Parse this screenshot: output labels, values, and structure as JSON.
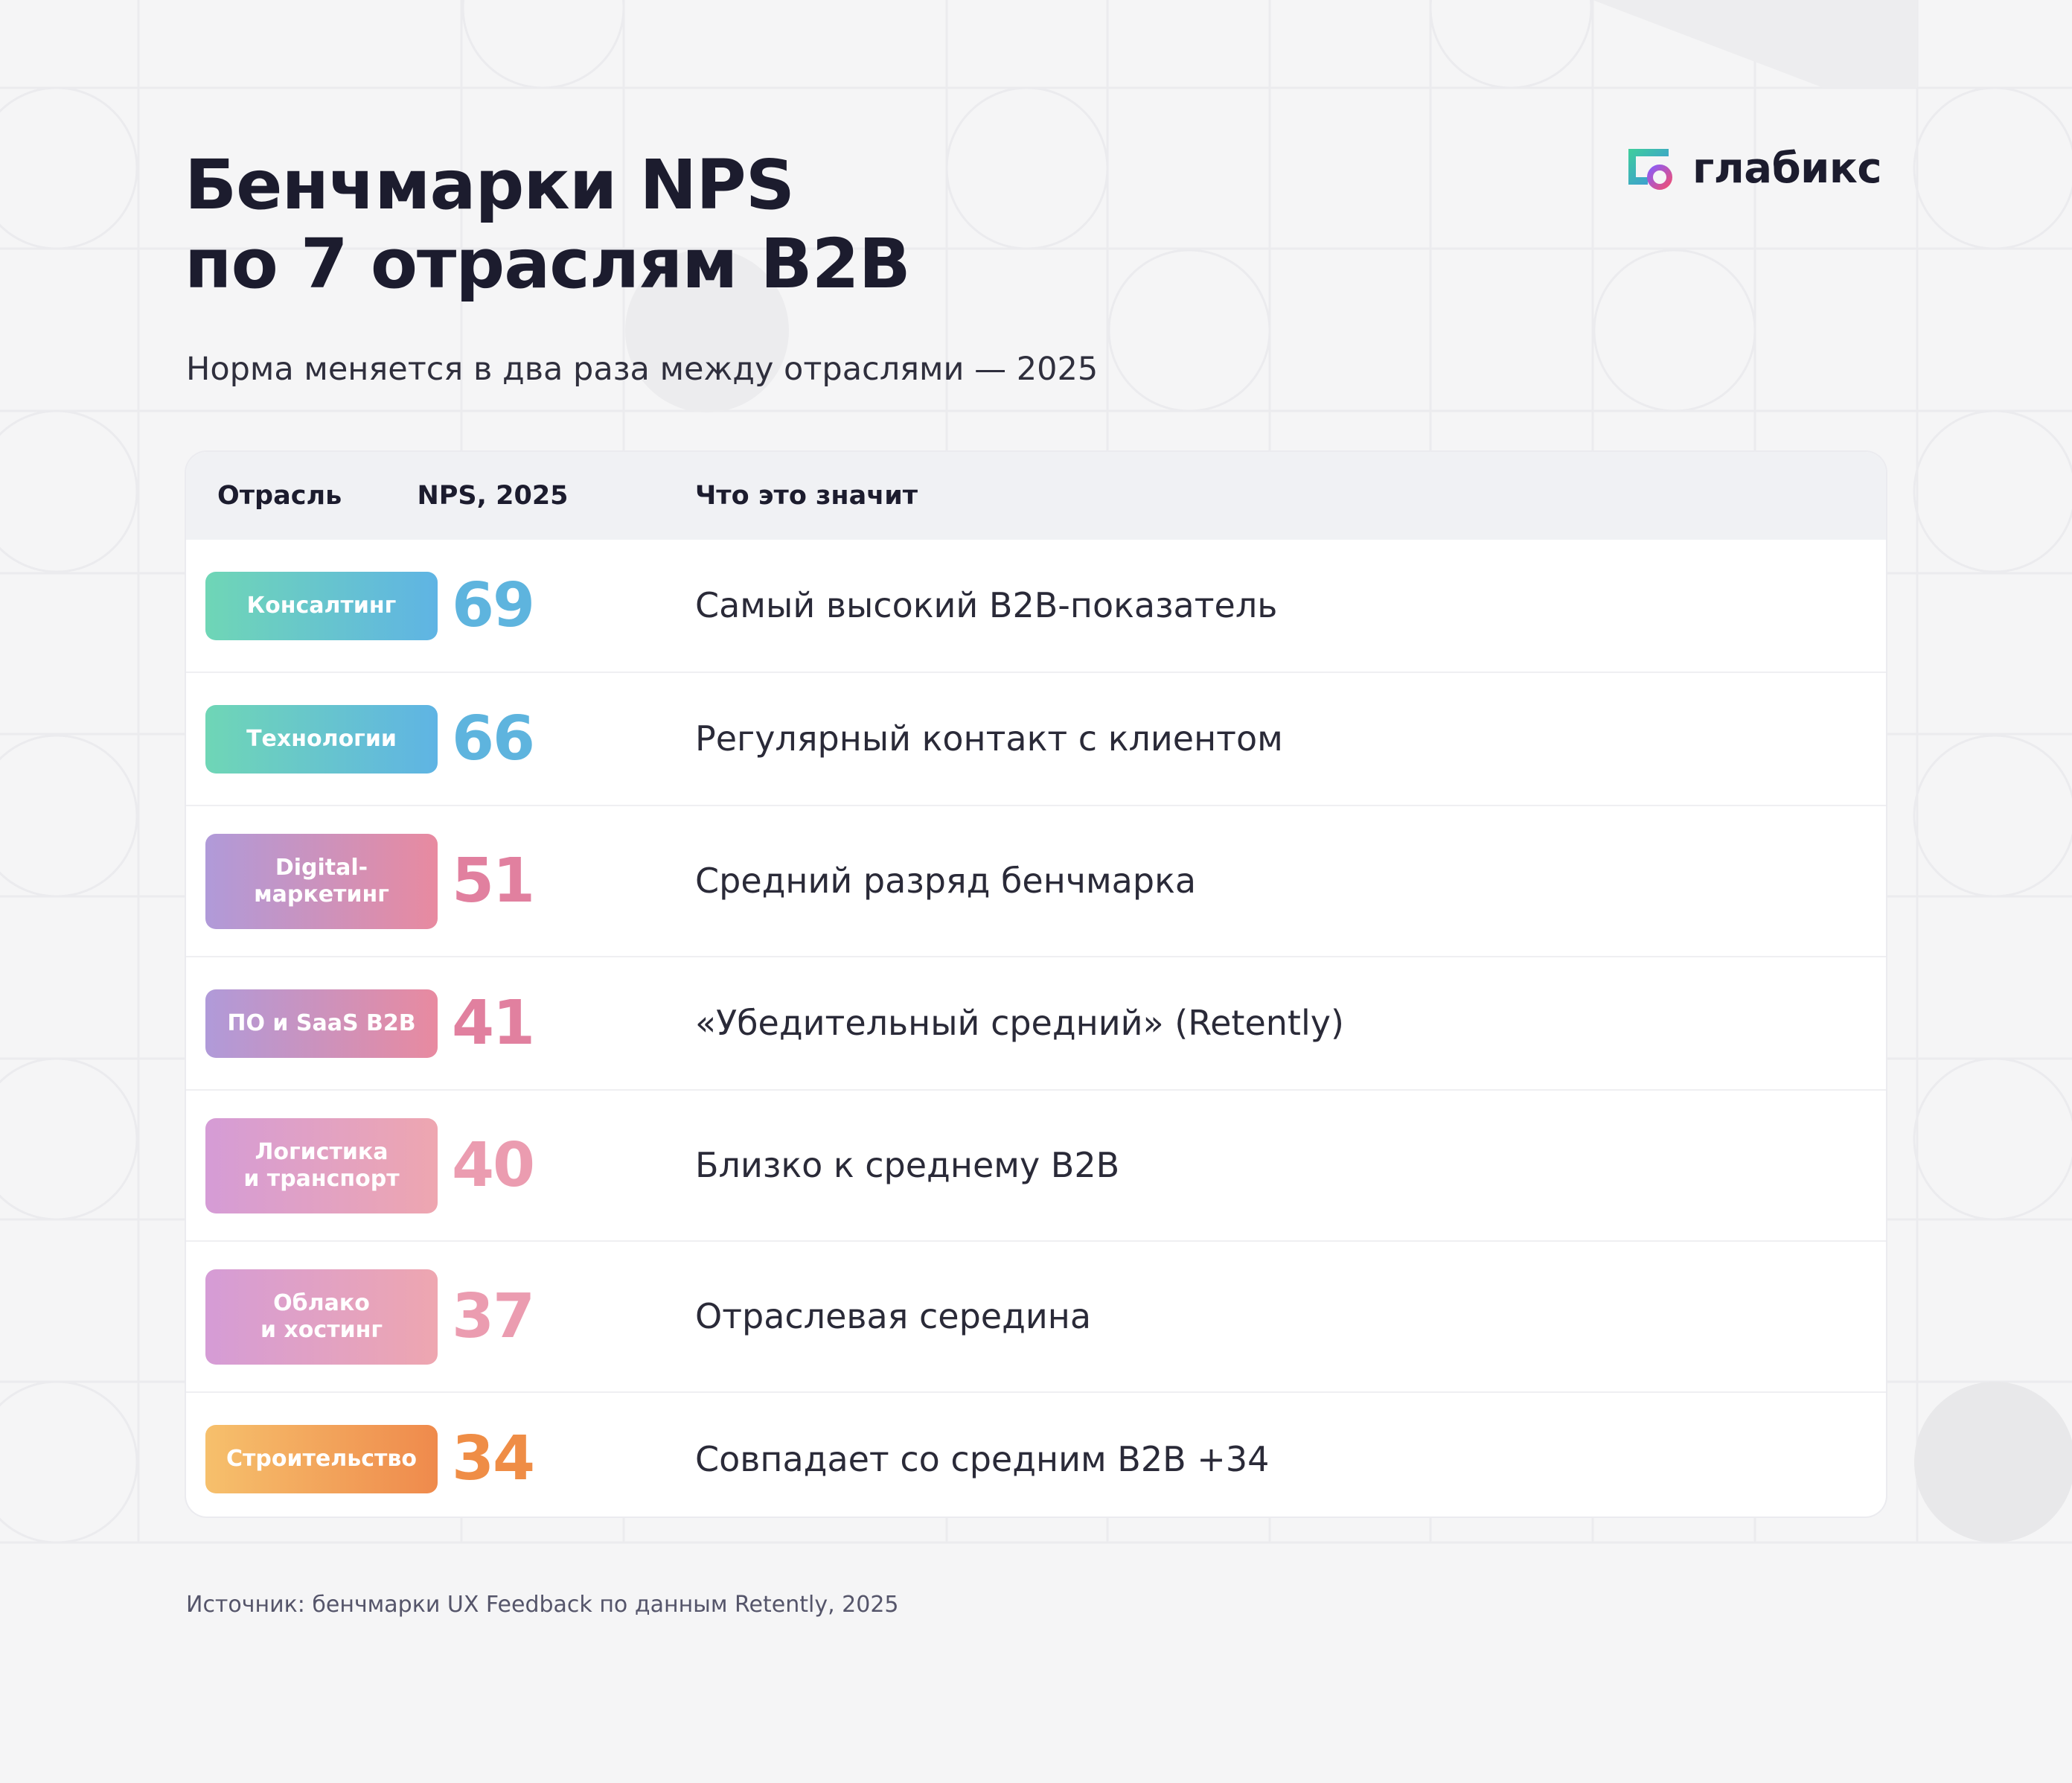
{
  "header": {
    "title_line1": "Бенчмарки NPS",
    "title_line2": "по 7 отраслям B2B",
    "subtitle": "Норма меняется в два раза между отраслями — 2025"
  },
  "logo": {
    "text": "глабикс",
    "icon": "glabix-logo-icon"
  },
  "table": {
    "headers": {
      "industry": "Отрасль",
      "nps": "NPS, 2025",
      "meaning": "Что это значит"
    },
    "rows": [
      {
        "industry": "Консалтинг",
        "nps": "69",
        "meaning": "Самый высокий B2B-показатель",
        "gradient": [
          "#6fd6b6",
          "#5fb4e4"
        ],
        "nps_color": "#5eb4de"
      },
      {
        "industry": "Технологии",
        "nps": "66",
        "meaning": "Регулярный контакт с клиентом",
        "gradient": [
          "#6fd6b6",
          "#5fb4e4"
        ],
        "nps_color": "#5eb4de"
      },
      {
        "industry": "Digital-\nмаркетинг",
        "nps": "51",
        "meaning": "Средний разряд бенчмарка",
        "gradient": [
          "#b09ad9",
          "#e88aa0"
        ],
        "nps_color": "#e1809f"
      },
      {
        "industry": "ПО и SaaS B2B",
        "nps": "41",
        "meaning": "«Убедительный средний» (Retently)",
        "gradient": [
          "#b09ad9",
          "#e88aa0"
        ],
        "nps_color": "#e1809f"
      },
      {
        "industry": "Логистика\nи транспорт",
        "nps": "40",
        "meaning": "Близко к среднему B2B",
        "gradient": [
          "#d59cd6",
          "#eea6b0"
        ],
        "nps_color": "#eb9cb0"
      },
      {
        "industry": "Облако\nи хостинг",
        "nps": "37",
        "meaning": "Отраслевая середина",
        "gradient": [
          "#d59cd6",
          "#eea6b0"
        ],
        "nps_color": "#eb9cb0"
      },
      {
        "industry": "Строительство",
        "nps": "34",
        "meaning": "Совпадает со средним B2B +34",
        "gradient": [
          "#f6c06c",
          "#ef8a4c"
        ],
        "nps_color": "#ef8d46"
      }
    ]
  },
  "footer": {
    "source": "Источник: бенчмарки UX Feedback по данным Retently, 2025"
  }
}
